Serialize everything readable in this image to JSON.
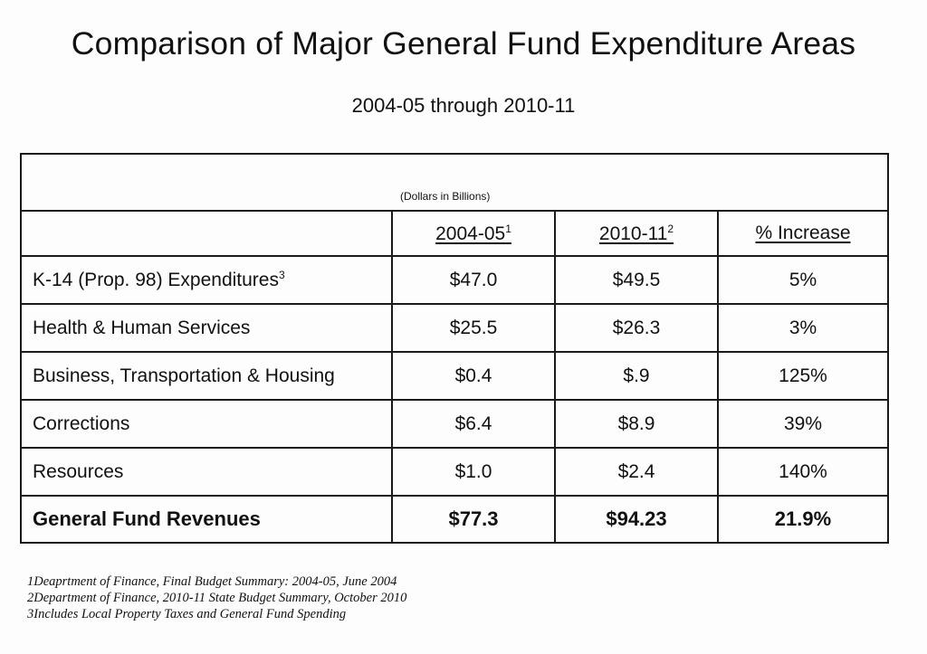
{
  "title": "Comparison of Major General Fund Expenditure Areas",
  "subtitle": "2004-05 through 2010-11",
  "table": {
    "units": "(Dollars in Billions)",
    "columns": [
      {
        "label": "2004-05",
        "sup": "1"
      },
      {
        "label": "2010-11",
        "sup": "2"
      },
      {
        "label": "% Increase",
        "sup": ""
      }
    ],
    "rows": [
      {
        "label": "K-14 (Prop. 98) Expenditures",
        "sup": "3",
        "v2004": "$47.0",
        "v2010": "$49.5",
        "increase": "5%"
      },
      {
        "label": "Health & Human Services",
        "sup": "",
        "v2004": "$25.5",
        "v2010": "$26.3",
        "increase": "3%"
      },
      {
        "label": "Business, Transportation & Housing",
        "sup": "",
        "v2004": "$0.4",
        "v2010": "$.9",
        "increase": "125%"
      },
      {
        "label": "Corrections",
        "sup": "",
        "v2004": "$6.4",
        "v2010": "$8.9",
        "increase": "39%"
      },
      {
        "label": "Resources",
        "sup": "",
        "v2004": "$1.0",
        "v2010": "$2.4",
        "increase": "140%"
      }
    ],
    "total": {
      "label": "General Fund Revenues",
      "v2004": "$77.3",
      "v2010": "$94.23",
      "increase": "21.9%"
    }
  },
  "footnotes": [
    "1Deaprtment of Finance, Final Budget Summary: 2004-05, June 2004",
    "2Department of Finance, 2010-11 State Budget Summary, October 2010",
    "3Includes Local Property Taxes and General Fund Spending"
  ]
}
